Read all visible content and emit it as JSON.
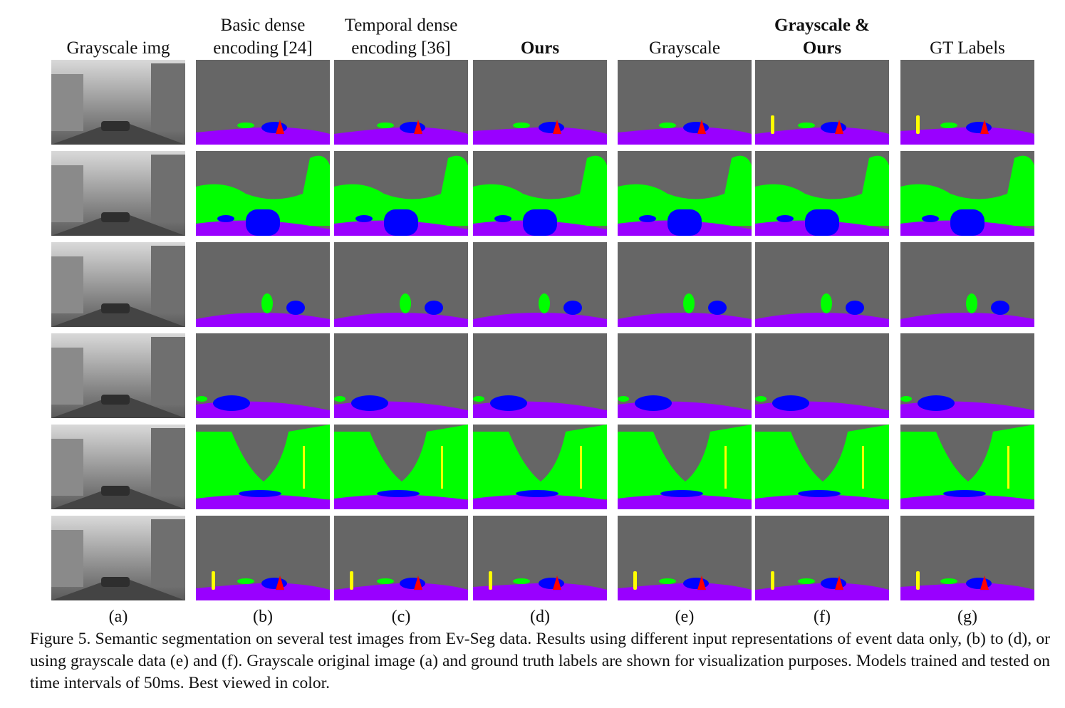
{
  "figure": {
    "columns": [
      {
        "key": "a",
        "label": "Grayscale img",
        "bold": false,
        "sublabel": "(a)",
        "kind": "gray"
      },
      {
        "key": "b",
        "label": "Basic dense encoding [24]",
        "bold": false,
        "sublabel": "(b)",
        "kind": "seg"
      },
      {
        "key": "c",
        "label": "Temporal dense encoding [36]",
        "bold": false,
        "sublabel": "(c)",
        "kind": "seg"
      },
      {
        "key": "d",
        "label": "Ours",
        "bold": true,
        "sublabel": "(d)",
        "kind": "seg"
      },
      {
        "key": "e",
        "label": "Grayscale",
        "bold": false,
        "sublabel": "(e)",
        "kind": "seg"
      },
      {
        "key": "f",
        "label": "Grayscale & Ours",
        "bold": true,
        "sublabel": "(f)",
        "kind": "seg"
      },
      {
        "key": "g",
        "label": "GT Labels",
        "bold": false,
        "sublabel": "(g)",
        "kind": "seg"
      }
    ],
    "row_count": 6,
    "label_colors": {
      "background": "#666666",
      "road": "#9900ff",
      "vegetation": "#00ff00",
      "vehicle": "#0000ff",
      "pedestrian": "#ff0000",
      "pole": "#ffff00"
    },
    "caption": "Figure 5. Semantic segmentation on several test images from Ev-Seg data. Results using different input representations of event data only, (b) to (d), or using grayscale data (e) and (f). Grayscale original image (a) and ground truth labels are shown for visualization purposes. Models trained and tested on time intervals of 50ms. Best viewed in color."
  }
}
